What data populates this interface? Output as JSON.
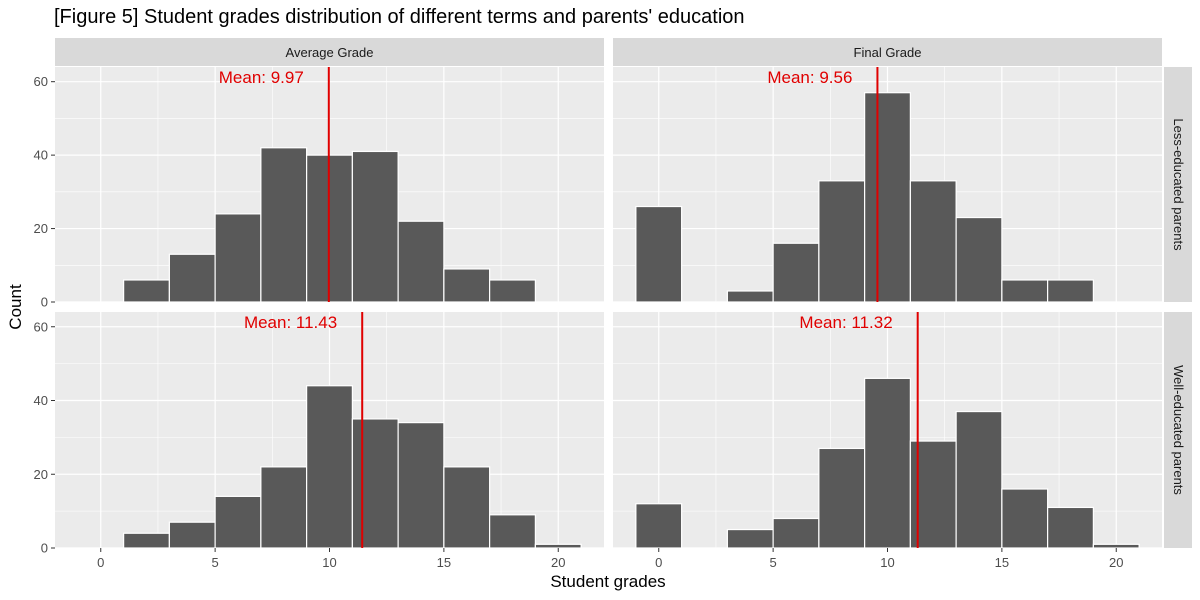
{
  "chart_data": {
    "type": "bar",
    "title": "[Figure 5] Student grades distribution of different terms and parents' education",
    "xlabel": "Student grades",
    "ylabel": "Count",
    "xlim": [
      -2,
      22
    ],
    "ylim": [
      0,
      64
    ],
    "x_ticks": [
      0,
      5,
      10,
      15,
      20
    ],
    "y_ticks": [
      0,
      20,
      40,
      60
    ],
    "bin_width": 2,
    "grid": true,
    "col_facets": [
      "Average Grade",
      "Final Grade"
    ],
    "row_facets": [
      "Less-educated parents",
      "Well-educated parents"
    ],
    "bar_color": "#595959",
    "bar_outline": "#ffffff",
    "mean_color": "#e00000",
    "mean_label_prefix": "Mean:  ",
    "panels": [
      {
        "col": "Average Grade",
        "row": "Less-educated parents",
        "mean": 9.97,
        "mean_label": "9.97",
        "bins": [
          {
            "x": 2,
            "count": 6
          },
          {
            "x": 4,
            "count": 13
          },
          {
            "x": 6,
            "count": 24
          },
          {
            "x": 8,
            "count": 42
          },
          {
            "x": 10,
            "count": 40
          },
          {
            "x": 12,
            "count": 41
          },
          {
            "x": 14,
            "count": 22
          },
          {
            "x": 16,
            "count": 9
          },
          {
            "x": 18,
            "count": 6
          }
        ]
      },
      {
        "col": "Final Grade",
        "row": "Less-educated parents",
        "mean": 9.56,
        "mean_label": "9.56",
        "bins": [
          {
            "x": 0,
            "count": 26
          },
          {
            "x": 4,
            "count": 3
          },
          {
            "x": 6,
            "count": 16
          },
          {
            "x": 8,
            "count": 33
          },
          {
            "x": 10,
            "count": 57
          },
          {
            "x": 12,
            "count": 33
          },
          {
            "x": 14,
            "count": 23
          },
          {
            "x": 16,
            "count": 6
          },
          {
            "x": 18,
            "count": 6
          }
        ]
      },
      {
        "col": "Average Grade",
        "row": "Well-educated parents",
        "mean": 11.43,
        "mean_label": "11.43",
        "bins": [
          {
            "x": 2,
            "count": 4
          },
          {
            "x": 4,
            "count": 7
          },
          {
            "x": 6,
            "count": 14
          },
          {
            "x": 8,
            "count": 22
          },
          {
            "x": 10,
            "count": 44
          },
          {
            "x": 12,
            "count": 35
          },
          {
            "x": 14,
            "count": 34
          },
          {
            "x": 16,
            "count": 22
          },
          {
            "x": 18,
            "count": 9
          },
          {
            "x": 20,
            "count": 1
          }
        ]
      },
      {
        "col": "Final Grade",
        "row": "Well-educated parents",
        "mean": 11.32,
        "mean_label": "11.32",
        "bins": [
          {
            "x": 0,
            "count": 12
          },
          {
            "x": 4,
            "count": 5
          },
          {
            "x": 6,
            "count": 8
          },
          {
            "x": 8,
            "count": 27
          },
          {
            "x": 10,
            "count": 46
          },
          {
            "x": 12,
            "count": 29
          },
          {
            "x": 14,
            "count": 37
          },
          {
            "x": 16,
            "count": 16
          },
          {
            "x": 18,
            "count": 11
          },
          {
            "x": 20,
            "count": 1
          }
        ]
      }
    ]
  }
}
